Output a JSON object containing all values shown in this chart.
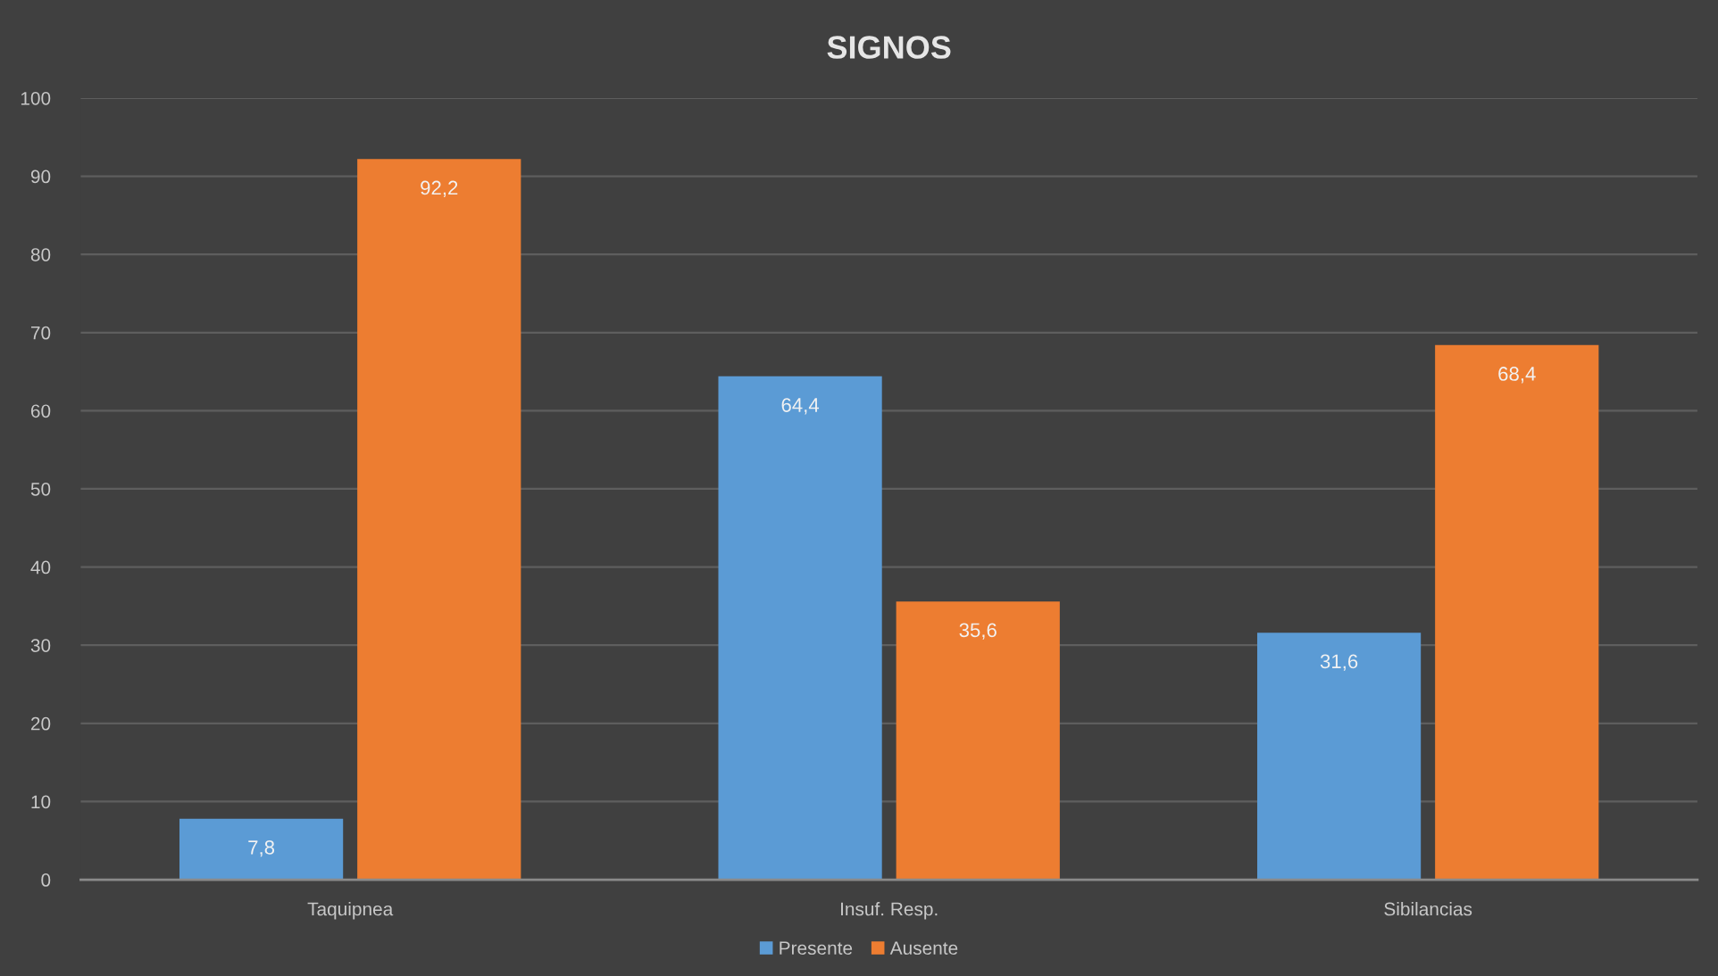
{
  "chart_data": {
    "type": "bar",
    "title": "SIGNOS",
    "categories": [
      "Taquipnea",
      "Insuf. Resp.",
      "Sibilancias"
    ],
    "series": [
      {
        "name": "Presente",
        "color": "#5b9bd5",
        "values": [
          7.8,
          64.4,
          31.6
        ],
        "value_labels": [
          "7,8",
          "64,4",
          "31,6"
        ]
      },
      {
        "name": "Ausente",
        "color": "#ed7d31",
        "values": [
          92.2,
          35.6,
          68.4
        ],
        "value_labels": [
          "92,2",
          "35,6",
          "68,4"
        ]
      }
    ],
    "ylim": [
      0,
      100
    ],
    "yticks": [
      0,
      10,
      20,
      30,
      40,
      50,
      60,
      70,
      80,
      90,
      100
    ],
    "grid": "y",
    "legend": "bottom"
  }
}
